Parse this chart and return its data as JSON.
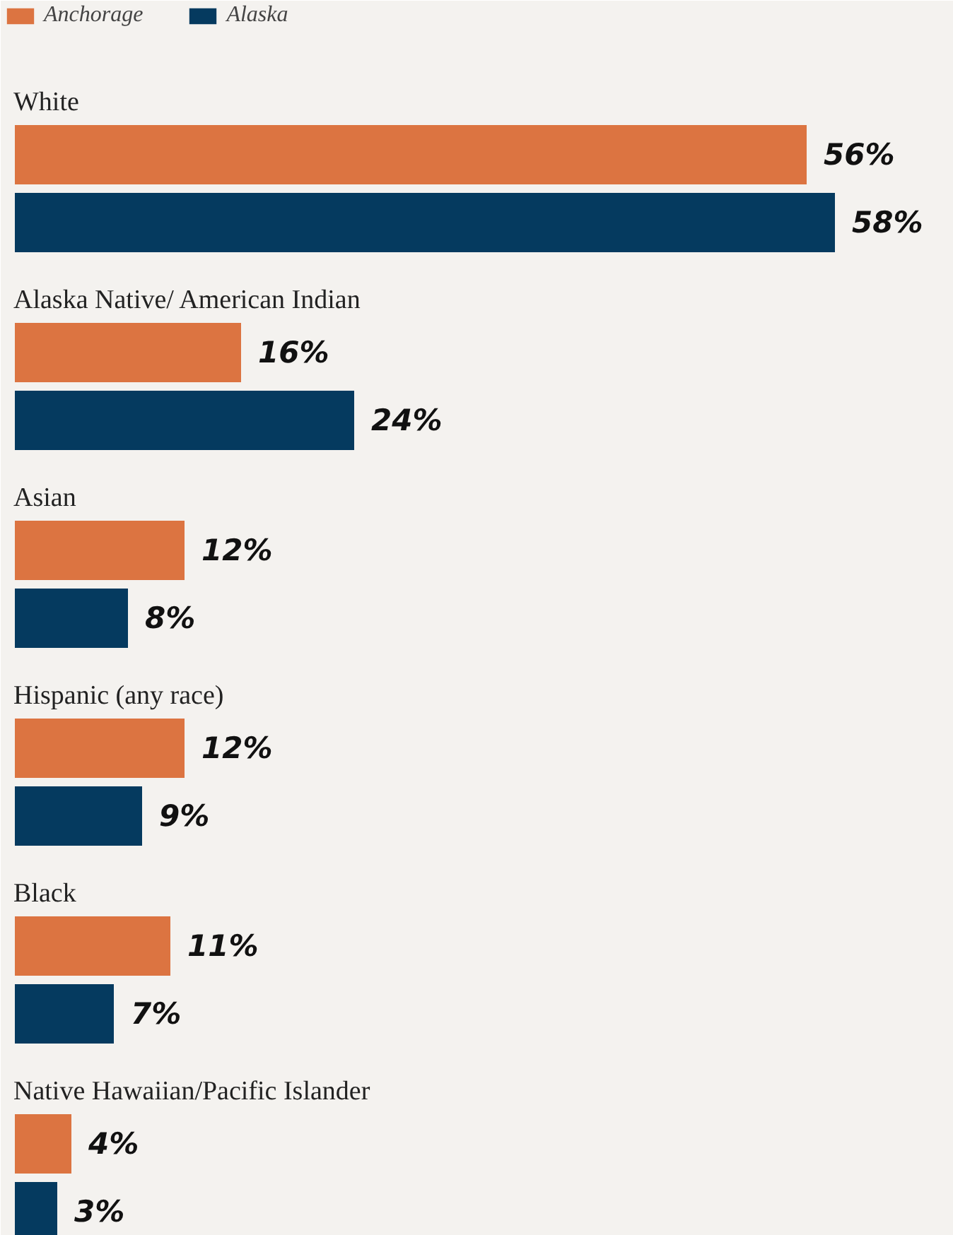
{
  "chart_data": {
    "type": "bar",
    "orientation": "horizontal",
    "categories": [
      "White",
      "Alaska Native/ American Indian",
      "Asian",
      "Hispanic (any race)",
      "Black",
      "Native Hawaiian/Pacific Islander"
    ],
    "series": [
      {
        "name": "Anchorage",
        "color": "#dc7441",
        "values": [
          56,
          16,
          12,
          12,
          11,
          4
        ],
        "value_labels": [
          "56%",
          "16%",
          "12%",
          "12%",
          "11%",
          "4%"
        ]
      },
      {
        "name": "Alaska",
        "color": "#053a5f",
        "values": [
          58,
          24,
          8,
          9,
          7,
          3
        ],
        "value_labels": [
          "58%",
          "24%",
          "8%",
          "9%",
          "7%",
          "3%"
        ]
      }
    ],
    "legend": "top left",
    "grid": false
  }
}
